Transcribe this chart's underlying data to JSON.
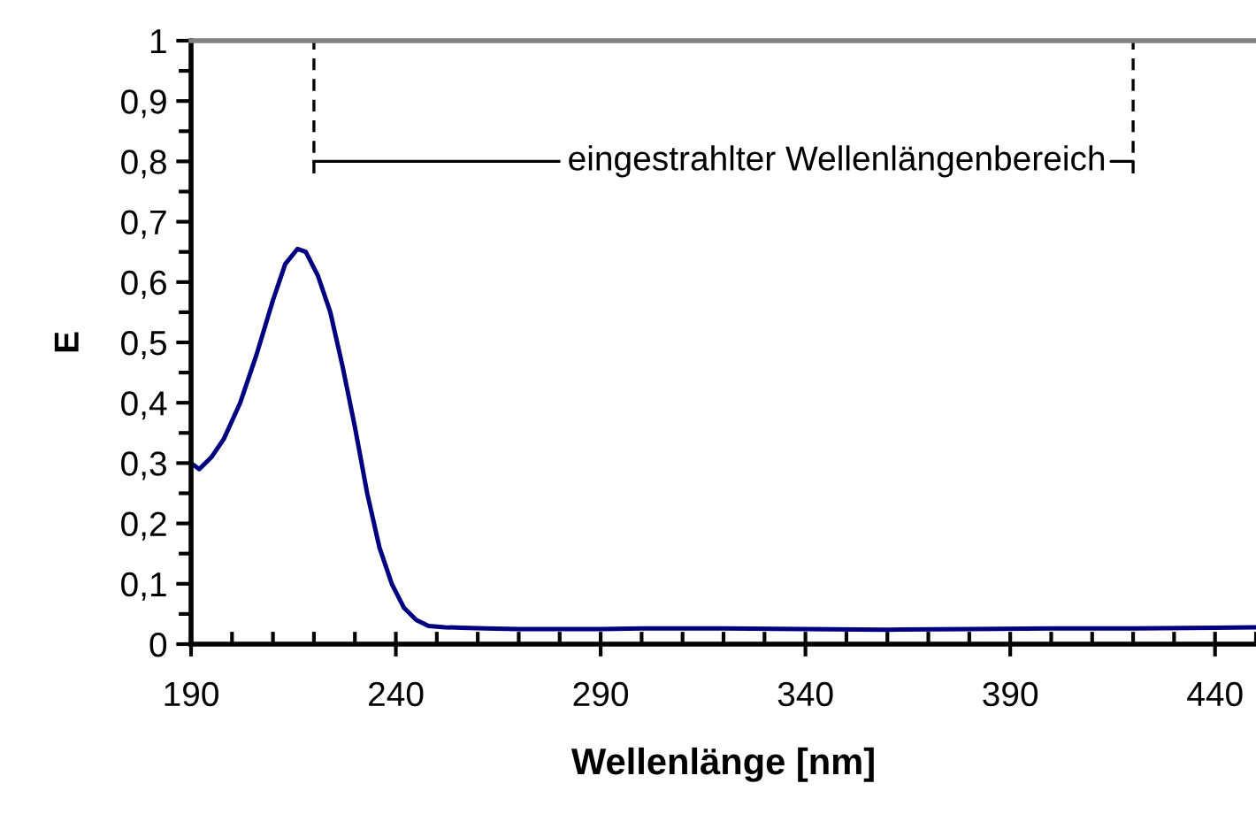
{
  "chart_data": {
    "type": "line",
    "xlabel": "Wellenlänge [nm]",
    "ylabel": "E",
    "x": [
      190,
      192,
      195,
      198,
      202,
      206,
      210,
      213,
      216,
      218,
      221,
      224,
      227,
      230,
      233,
      236,
      239,
      242,
      245,
      248,
      252,
      256,
      262,
      270,
      280,
      290,
      300,
      320,
      340,
      360,
      380,
      400,
      420,
      440,
      450
    ],
    "series": [
      {
        "color": "#000080",
        "values": [
          0.3,
          0.29,
          0.31,
          0.34,
          0.4,
          0.48,
          0.57,
          0.63,
          0.655,
          0.65,
          0.61,
          0.55,
          0.46,
          0.36,
          0.25,
          0.16,
          0.1,
          0.06,
          0.04,
          0.03,
          0.028,
          0.027,
          0.026,
          0.025,
          0.025,
          0.025,
          0.026,
          0.026,
          0.025,
          0.024,
          0.025,
          0.026,
          0.026,
          0.027,
          0.028
        ]
      }
    ],
    "xlim": [
      190,
      450
    ],
    "xticks": [
      190,
      240,
      290,
      340,
      390,
      440
    ],
    "ylim": [
      0,
      1
    ],
    "yticks": [
      0,
      {
        "value": 0.1,
        "label": "0,1"
      },
      {
        "value": 0.2,
        "label": "0,2"
      },
      {
        "value": 0.3,
        "label": "0,3"
      },
      {
        "value": 0.4,
        "label": "0,4"
      },
      {
        "value": 0.5,
        "label": "0,5"
      },
      {
        "value": 0.6,
        "label": "0,6"
      },
      {
        "value": 0.7,
        "label": "0,7"
      },
      {
        "value": 0.8,
        "label": "0,8"
      },
      {
        "value": 0.9,
        "label": "0,9"
      },
      1
    ],
    "ref_lines": [
      {
        "axis": "x",
        "value": 220,
        "line_style": "dashed",
        "color": "#000000"
      },
      {
        "axis": "x",
        "value": 420,
        "line_style": "dashed",
        "color": "#000000"
      }
    ],
    "annotations": [
      {
        "text": "eingestrahlter Wellenlängenbereich",
        "x": 420,
        "y": 0.8
      }
    ],
    "grid": false,
    "legend": false
  }
}
